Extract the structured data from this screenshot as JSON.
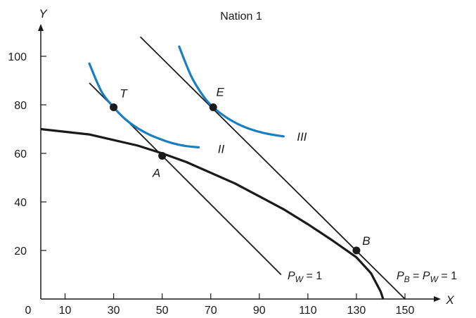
{
  "chart_data": {
    "type": "line",
    "title": "Nation 1",
    "xlabel": "X",
    "ylabel": "Y",
    "xlim": [
      0,
      150
    ],
    "ylim": [
      0,
      110
    ],
    "origin_label": "0",
    "xticks": [
      10,
      30,
      50,
      70,
      90,
      110,
      130,
      150
    ],
    "yticks": [
      20,
      40,
      60,
      80,
      100
    ],
    "grid": false,
    "legend": "none",
    "colors": {
      "indifference": "#1a7fc1",
      "lines": "#1a1a1a"
    },
    "frontier": {
      "x": [
        0,
        20,
        40,
        50,
        60,
        80,
        100,
        110,
        120,
        130,
        136,
        140,
        141
      ],
      "y": [
        70,
        67.8,
        63.2,
        60,
        56.4,
        47.6,
        37,
        30.8,
        24.2,
        17.2,
        10.6,
        3,
        0
      ]
    },
    "price_lines": [
      {
        "label": "P_W = 1",
        "label_text": {
          "base": "P",
          "sub": "W",
          "rest": " = 1"
        },
        "x": [
          20,
          99
        ],
        "y": [
          89,
          10
        ]
      },
      {
        "label": "P_B = P_W = 1",
        "label_text": {
          "base": "P",
          "sub": "B",
          "mid": " = ",
          "base2": "P",
          "sub2": "W",
          "rest": " = 1"
        },
        "x": [
          41,
          150
        ],
        "y": [
          108,
          0
        ]
      }
    ],
    "indifference_curves": [
      {
        "name": "II",
        "x": [
          20,
          25,
          30,
          35,
          40,
          45,
          50,
          55,
          60,
          65
        ],
        "y": [
          97,
          85.5,
          79,
          73.9,
          70.3,
          67.6,
          65.6,
          64,
          63,
          62.5
        ]
      },
      {
        "name": "III",
        "x": [
          57,
          62,
          67,
          71,
          76,
          81,
          86,
          91,
          96,
          100
        ],
        "y": [
          104,
          91.7,
          83.5,
          79,
          75.1,
          72.2,
          70.1,
          68.6,
          67.6,
          67
        ]
      }
    ],
    "points": [
      {
        "label": "T",
        "x": 30,
        "y": 79
      },
      {
        "label": "E",
        "x": 71,
        "y": 79
      },
      {
        "label": "A",
        "x": 50,
        "y": 59
      },
      {
        "label": "B",
        "x": 130,
        "y": 20
      }
    ]
  }
}
